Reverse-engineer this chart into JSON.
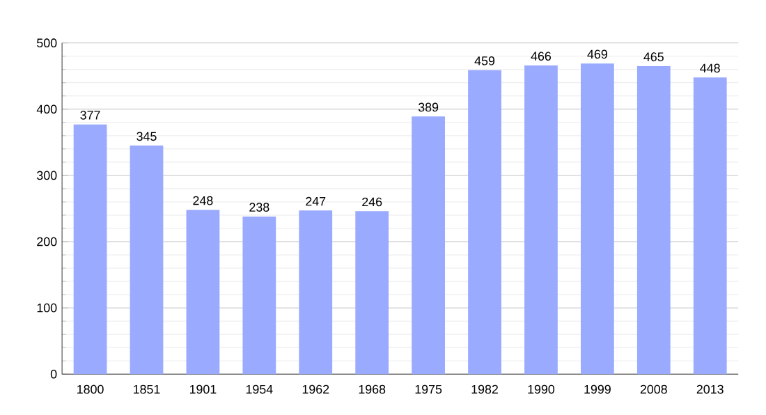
{
  "chart_data": {
    "type": "bar",
    "categories": [
      "1800",
      "1851",
      "1901",
      "1954",
      "1962",
      "1968",
      "1975",
      "1982",
      "1990",
      "1999",
      "2008",
      "2013"
    ],
    "values": [
      377,
      345,
      248,
      238,
      247,
      246,
      389,
      459,
      466,
      469,
      465,
      448
    ],
    "color": "#99aaff",
    "ylim": [
      0,
      500
    ],
    "yticks": [
      0,
      100,
      200,
      300,
      400,
      500
    ],
    "grid": "y",
    "data_labels": true
  }
}
